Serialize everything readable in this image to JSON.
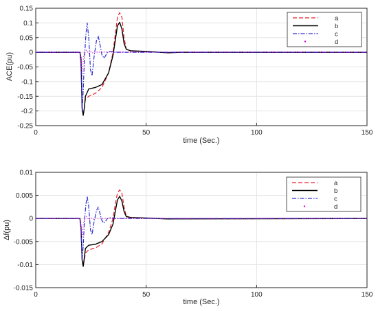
{
  "chart_data": [
    {
      "type": "line",
      "xlabel": "time (Sec.)",
      "ylabel": "ACE(pu)",
      "xlim": [
        0,
        150
      ],
      "ylim": [
        -0.25,
        0.15
      ],
      "xticks": [
        "0",
        "50",
        "100",
        "150"
      ],
      "yticks": [
        "0.15",
        "0.1",
        "0.05",
        "0",
        "-0.05",
        "-0.1",
        "-0.15",
        "-0.2",
        "-0.25"
      ],
      "grid": true,
      "legend_position": "top-right",
      "series": [
        {
          "name": "a",
          "color": "#e8202a",
          "style": "dashed",
          "points": [
            [
              0,
              0
            ],
            [
              20,
              0
            ],
            [
              20.5,
              -0.02
            ],
            [
              21,
              -0.19
            ],
            [
              21.5,
              -0.21
            ],
            [
              22,
              -0.19
            ],
            [
              22.5,
              -0.16
            ],
            [
              24,
              -0.15
            ],
            [
              27,
              -0.14
            ],
            [
              30,
              -0.12
            ],
            [
              33,
              -0.07
            ],
            [
              35,
              0.0
            ],
            [
              36,
              0.06
            ],
            [
              37,
              0.12
            ],
            [
              38,
              0.135
            ],
            [
              39,
              0.12
            ],
            [
              40,
              0.05
            ],
            [
              41,
              0.01
            ],
            [
              43,
              0.004
            ],
            [
              50,
              0.003
            ],
            [
              60,
              -0.002
            ],
            [
              65,
              0.0
            ],
            [
              150,
              0.0
            ]
          ]
        },
        {
          "name": "b",
          "color": "#000000",
          "style": "solid",
          "points": [
            [
              0,
              0
            ],
            [
              20,
              0
            ],
            [
              20.5,
              -0.02
            ],
            [
              21,
              -0.19
            ],
            [
              21.5,
              -0.215
            ],
            [
              22,
              -0.19
            ],
            [
              22.5,
              -0.15
            ],
            [
              24,
              -0.125
            ],
            [
              27,
              -0.12
            ],
            [
              30,
              -0.11
            ],
            [
              33,
              -0.07
            ],
            [
              35,
              -0.01
            ],
            [
              36,
              0.04
            ],
            [
              37,
              0.09
            ],
            [
              38,
              0.102
            ],
            [
              39,
              0.08
            ],
            [
              40,
              0.03
            ],
            [
              41,
              0.01
            ],
            [
              43,
              0.005
            ],
            [
              50,
              0.003
            ],
            [
              60,
              -0.002
            ],
            [
              65,
              0.0
            ],
            [
              150,
              0.0
            ]
          ]
        },
        {
          "name": "c",
          "color": "#2d2dd2",
          "style": "dashdot",
          "points": [
            [
              0,
              0
            ],
            [
              20,
              0
            ],
            [
              20.5,
              -0.05
            ],
            [
              21,
              -0.2
            ],
            [
              21.5,
              -0.13
            ],
            [
              22,
              -0.03
            ],
            [
              22.7,
              0.06
            ],
            [
              23.3,
              0.1
            ],
            [
              24,
              0.05
            ],
            [
              24.8,
              -0.06
            ],
            [
              25.5,
              -0.08
            ],
            [
              26.5,
              -0.01
            ],
            [
              27.5,
              0.04
            ],
            [
              28.3,
              0.055
            ],
            [
              29,
              0.03
            ],
            [
              30,
              -0.01
            ],
            [
              31,
              -0.02
            ],
            [
              32.5,
              0.0
            ],
            [
              34,
              0.003
            ],
            [
              36,
              0.0
            ],
            [
              150,
              0.0
            ]
          ]
        },
        {
          "name": "d",
          "color": "#e100e1",
          "style": "dotted",
          "points": [
            [
              0,
              0
            ],
            [
              20,
              0
            ],
            [
              20.5,
              -0.02
            ],
            [
              21,
              -0.08
            ],
            [
              21.5,
              -0.03
            ],
            [
              22,
              0.0
            ],
            [
              23,
              0.007
            ],
            [
              24,
              -0.005
            ],
            [
              25,
              0.002
            ],
            [
              26,
              -0.003
            ],
            [
              27,
              0.002
            ],
            [
              28,
              0.0
            ],
            [
              30,
              0.001
            ],
            [
              150,
              0.0
            ]
          ]
        }
      ]
    },
    {
      "type": "line",
      "xlabel": "time (Sec.)",
      "ylabel": "Δf(pu)",
      "xlim": [
        0,
        150
      ],
      "ylim": [
        -0.015,
        0.01
      ],
      "xticks": [
        "0",
        "50",
        "100",
        "150"
      ],
      "yticks": [
        "0.01",
        "0.005",
        "0",
        "-0.005",
        "-0.01",
        "-0.015"
      ],
      "grid": true,
      "legend_position": "top-right",
      "series": [
        {
          "name": "a",
          "color": "#e8202a",
          "style": "dashed",
          "points": [
            [
              0,
              0
            ],
            [
              20,
              0
            ],
            [
              20.5,
              -0.002
            ],
            [
              21,
              -0.009
            ],
            [
              21.5,
              -0.0103
            ],
            [
              22,
              -0.009
            ],
            [
              22.5,
              -0.0075
            ],
            [
              24,
              -0.0068
            ],
            [
              27,
              -0.0064
            ],
            [
              30,
              -0.0055
            ],
            [
              33,
              -0.003
            ],
            [
              35,
              0.0
            ],
            [
              36,
              0.003
            ],
            [
              37,
              0.0055
            ],
            [
              38,
              0.0062
            ],
            [
              39,
              0.0055
            ],
            [
              40,
              0.0025
            ],
            [
              41,
              0.0005
            ],
            [
              43,
              0.0002
            ],
            [
              50,
              0.0001
            ],
            [
              60,
              -0.0001
            ],
            [
              150,
              0.0
            ]
          ]
        },
        {
          "name": "b",
          "color": "#000000",
          "style": "solid",
          "points": [
            [
              0,
              0
            ],
            [
              20,
              0
            ],
            [
              20.5,
              -0.002
            ],
            [
              21,
              -0.009
            ],
            [
              21.5,
              -0.0104
            ],
            [
              22,
              -0.0085
            ],
            [
              22.5,
              -0.0065
            ],
            [
              24,
              -0.0058
            ],
            [
              27,
              -0.0056
            ],
            [
              30,
              -0.005
            ],
            [
              33,
              -0.0035
            ],
            [
              35,
              -0.0012
            ],
            [
              36,
              0.0015
            ],
            [
              37,
              0.004
            ],
            [
              38,
              0.0048
            ],
            [
              39,
              0.0038
            ],
            [
              40,
              0.0015
            ],
            [
              41,
              0.0004
            ],
            [
              43,
              0.0002
            ],
            [
              50,
              0.0001
            ],
            [
              60,
              -0.0001
            ],
            [
              150,
              0.0
            ]
          ]
        },
        {
          "name": "c",
          "color": "#2d2dd2",
          "style": "dashdot",
          "points": [
            [
              0,
              0
            ],
            [
              20,
              0
            ],
            [
              20.5,
              -0.002
            ],
            [
              21,
              -0.009
            ],
            [
              21.5,
              -0.006
            ],
            [
              22,
              -0.001
            ],
            [
              22.7,
              0.003
            ],
            [
              23.3,
              0.0048
            ],
            [
              24,
              0.0025
            ],
            [
              24.8,
              -0.0025
            ],
            [
              25.5,
              -0.0035
            ],
            [
              26.5,
              -0.0005
            ],
            [
              27.5,
              0.0017
            ],
            [
              28.3,
              0.0025
            ],
            [
              29,
              0.0012
            ],
            [
              30,
              -0.0005
            ],
            [
              31,
              -0.001
            ],
            [
              32.5,
              0.0
            ],
            [
              34,
              0.0002
            ],
            [
              36,
              0.0
            ],
            [
              150,
              0.0
            ]
          ]
        },
        {
          "name": "d",
          "color": "#e100e1",
          "style": "dotted",
          "points": [
            [
              0,
              0
            ],
            [
              20,
              0
            ],
            [
              20.5,
              -0.001
            ],
            [
              21,
              -0.004
            ],
            [
              21.5,
              -0.0015
            ],
            [
              22,
              0.0
            ],
            [
              23,
              0.0004
            ],
            [
              24,
              -0.0003
            ],
            [
              25,
              0.0001
            ],
            [
              26,
              -0.0002
            ],
            [
              27,
              0.0001
            ],
            [
              28,
              0.0
            ],
            [
              150,
              0.0
            ]
          ]
        }
      ]
    }
  ]
}
